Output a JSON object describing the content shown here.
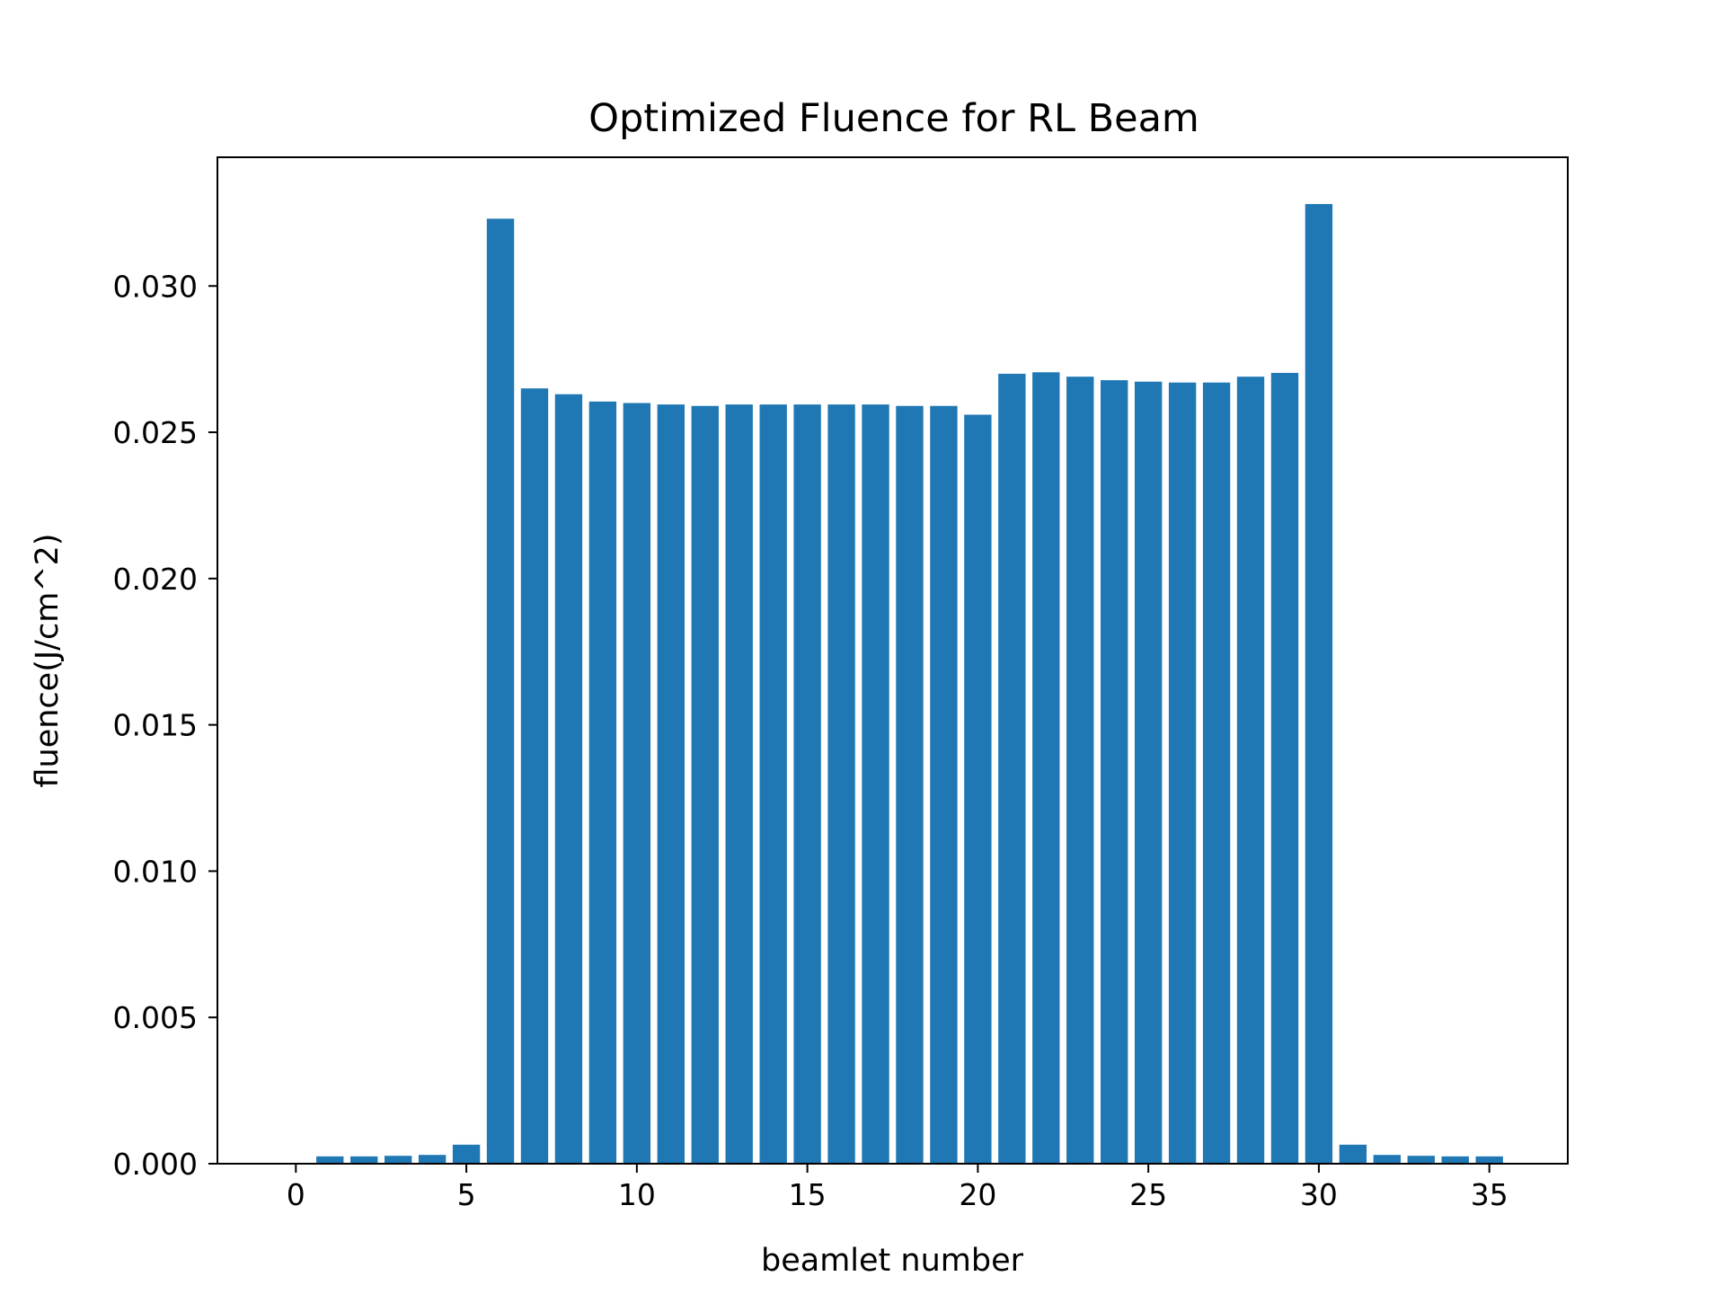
{
  "chart_data": {
    "type": "bar",
    "title": "Optimized Fluence for RL Beam",
    "xlabel": "beamlet number",
    "ylabel": "fluence(J/cm^2)",
    "x": [
      1,
      2,
      3,
      4,
      5,
      6,
      7,
      8,
      9,
      10,
      11,
      12,
      13,
      14,
      15,
      16,
      17,
      18,
      19,
      20,
      21,
      22,
      23,
      24,
      25,
      26,
      27,
      28,
      29,
      30,
      31,
      32,
      33,
      34,
      35
    ],
    "values": [
      0.00025,
      0.00025,
      0.00027,
      0.0003,
      0.00065,
      0.0323,
      0.0265,
      0.0263,
      0.02605,
      0.026,
      0.02595,
      0.0259,
      0.02595,
      0.02595,
      0.02595,
      0.02595,
      0.02595,
      0.0259,
      0.0259,
      0.0256,
      0.027,
      0.02705,
      0.0269,
      0.02678,
      0.02673,
      0.0267,
      0.0267,
      0.0269,
      0.02703,
      0.0328,
      0.00065,
      0.0003,
      0.00027,
      0.00025,
      0.00025
    ],
    "xlim": [
      -2.3,
      37.3
    ],
    "ylim": [
      0,
      0.0344
    ],
    "xticks": [
      0,
      5,
      10,
      15,
      20,
      25,
      30,
      35
    ],
    "xtick_labels": [
      "0",
      "5",
      "10",
      "15",
      "20",
      "25",
      "30",
      "35"
    ],
    "yticks": [
      0,
      0.005,
      0.01,
      0.015,
      0.02,
      0.025,
      0.03
    ],
    "ytick_labels": [
      "0.000",
      "0.005",
      "0.010",
      "0.015",
      "0.020",
      "0.025",
      "0.030"
    ],
    "bar_color": "#1f77b4",
    "grid": false,
    "legend": "none"
  }
}
